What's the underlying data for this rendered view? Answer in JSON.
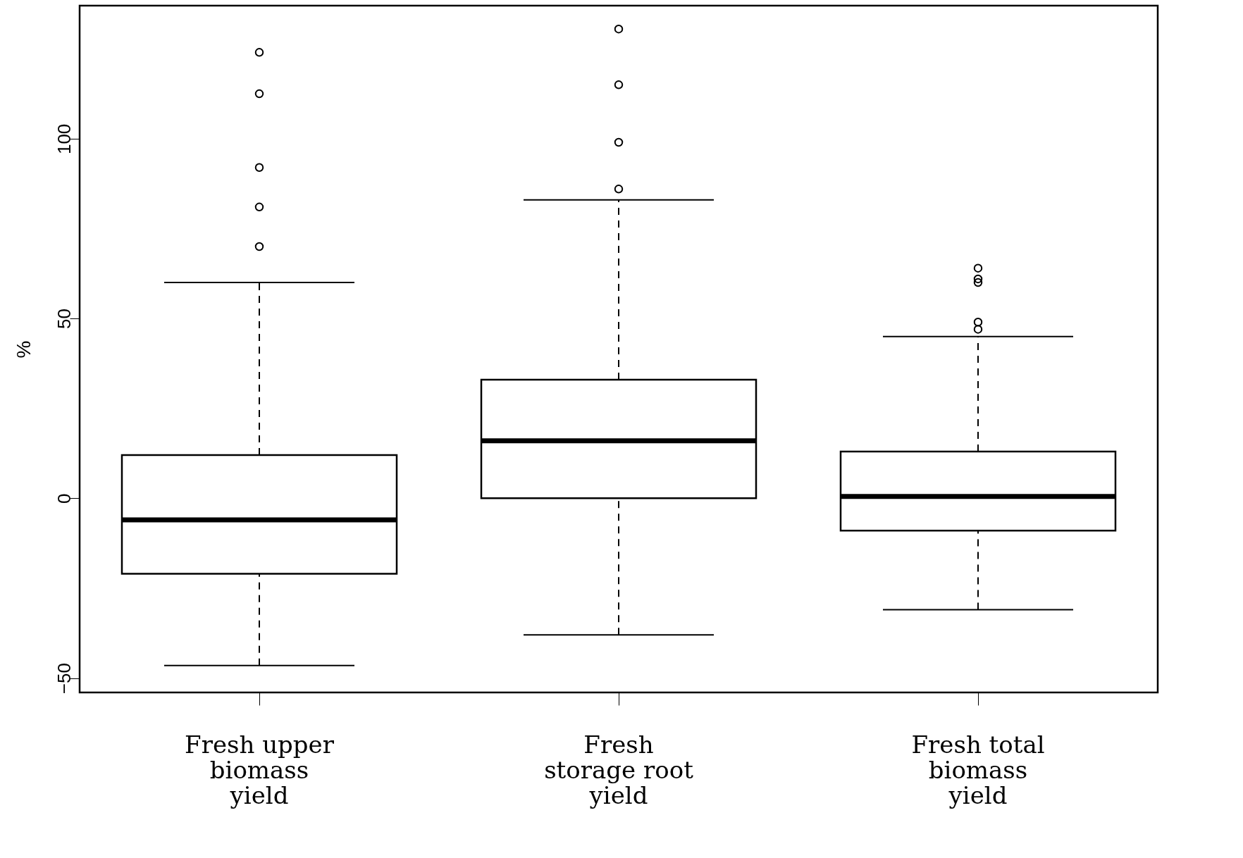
{
  "chart_data": {
    "type": "box",
    "ylabel": "%",
    "categories": [
      "Fresh upper\nbiomass\nyield",
      "Fresh\nstorage root\nyield",
      "Fresh total\nbiomass\nyield"
    ],
    "boxes": [
      {
        "low": -46.5,
        "q1": -21,
        "median": -6,
        "q3": 12,
        "high": 60,
        "outliers": [
          70,
          81,
          92,
          112.5,
          124
        ]
      },
      {
        "low": -38,
        "q1": 0,
        "median": 16,
        "q3": 33,
        "high": 83,
        "outliers": [
          86,
          99,
          115,
          130.5
        ]
      },
      {
        "low": -31,
        "q1": -9,
        "median": 0.5,
        "q3": 13,
        "high": 45,
        "outliers": [
          47,
          49,
          60,
          61,
          64
        ]
      }
    ],
    "ylim": [
      -54,
      137
    ],
    "yticks": [
      -50,
      0,
      50,
      100
    ],
    "grid": false,
    "marker": "circle"
  }
}
